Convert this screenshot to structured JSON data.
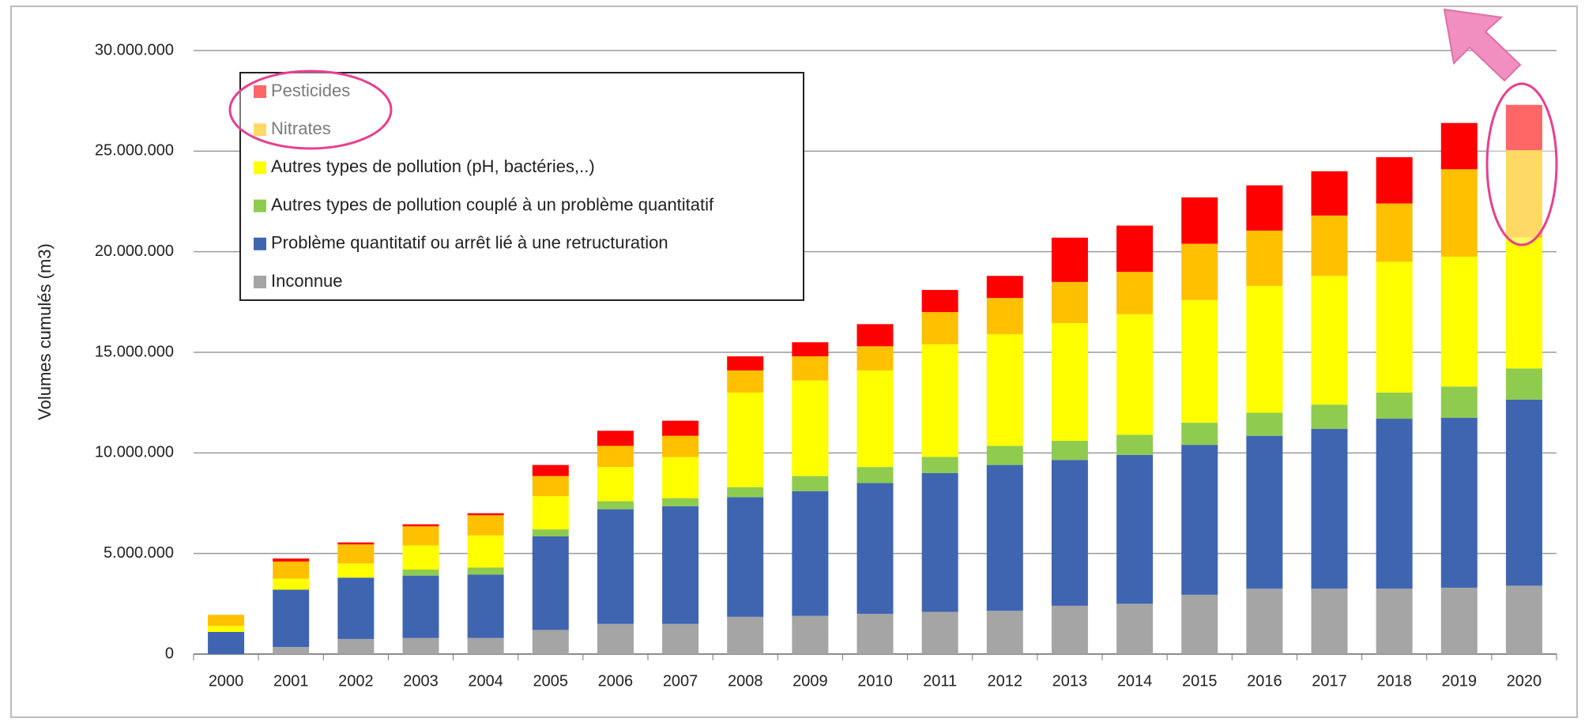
{
  "chart_data": {
    "type": "stacked_bar",
    "y_label": "Volumes cumulés (m3)",
    "categories": [
      "2000",
      "2001",
      "2002",
      "2003",
      "2004",
      "2005",
      "2006",
      "2007",
      "2008",
      "2009",
      "2010",
      "2011",
      "2012",
      "2013",
      "2014",
      "2015",
      "2016",
      "2017",
      "2018",
      "2019",
      "2020"
    ],
    "series": [
      {
        "name": "Inconnue",
        "color": "#a5a5a5",
        "values": [
          0,
          350000,
          750000,
          800000,
          800000,
          1200000,
          1500000,
          1500000,
          1850000,
          1900000,
          2000000,
          2100000,
          2150000,
          2400000,
          2500000,
          2950000,
          3250000,
          3250000,
          3250000,
          3300000,
          3400000
        ]
      },
      {
        "name": "Problème quantitatif ou arrêt lié à une retructuration",
        "color": "#3f65b1",
        "values": [
          1100000,
          2850000,
          3050000,
          3100000,
          3150000,
          4650000,
          5700000,
          5850000,
          5950000,
          6200000,
          6500000,
          6900000,
          7250000,
          7250000,
          7400000,
          7450000,
          7600000,
          7950000,
          8450000,
          8450000,
          9250000
        ]
      },
      {
        "name": "Autres types de pollution couplé à un problème quantitatif",
        "color": "#8fcb4f",
        "values": [
          0,
          0,
          0,
          300000,
          350000,
          350000,
          400000,
          400000,
          500000,
          750000,
          800000,
          800000,
          950000,
          950000,
          1000000,
          1100000,
          1150000,
          1200000,
          1300000,
          1550000,
          1550000
        ]
      },
      {
        "name": "Autres types de pollution (pH, bactéries,..)",
        "color": "#ffff00",
        "values": [
          300000,
          550000,
          700000,
          1200000,
          1600000,
          1650000,
          1700000,
          2050000,
          4700000,
          4750000,
          4800000,
          5600000,
          5550000,
          5850000,
          6000000,
          6100000,
          6300000,
          6400000,
          6500000,
          6450000,
          6500000
        ]
      },
      {
        "name": "Nitrates",
        "color": "#ffc000",
        "values": [
          550000,
          850000,
          950000,
          950000,
          1000000,
          1000000,
          1050000,
          1050000,
          1100000,
          1200000,
          1200000,
          1600000,
          1800000,
          2050000,
          2100000,
          2800000,
          2750000,
          3000000,
          2900000,
          4350000,
          4350000
        ]
      },
      {
        "name": "Pesticides",
        "color": "#ff0000",
        "values": [
          0,
          150000,
          100000,
          100000,
          100000,
          550000,
          750000,
          750000,
          700000,
          700000,
          1100000,
          1100000,
          1100000,
          2200000,
          2300000,
          2300000,
          2250000,
          2200000,
          2300000,
          2300000,
          2250000
        ]
      }
    ],
    "ylim": [
      0,
      30000000
    ],
    "yticks": [
      0,
      {
        "value": 5000000,
        "label": "5.000.000"
      },
      {
        "value": 10000000,
        "label": "10.000.000"
      },
      {
        "value": 15000000,
        "label": "15.000.000"
      },
      {
        "value": 20000000,
        "label": "20.000.000"
      },
      {
        "value": 25000000,
        "label": "25.000.000"
      },
      {
        "value": 30000000,
        "label": "30.000.000"
      }
    ],
    "grid": true
  }
}
